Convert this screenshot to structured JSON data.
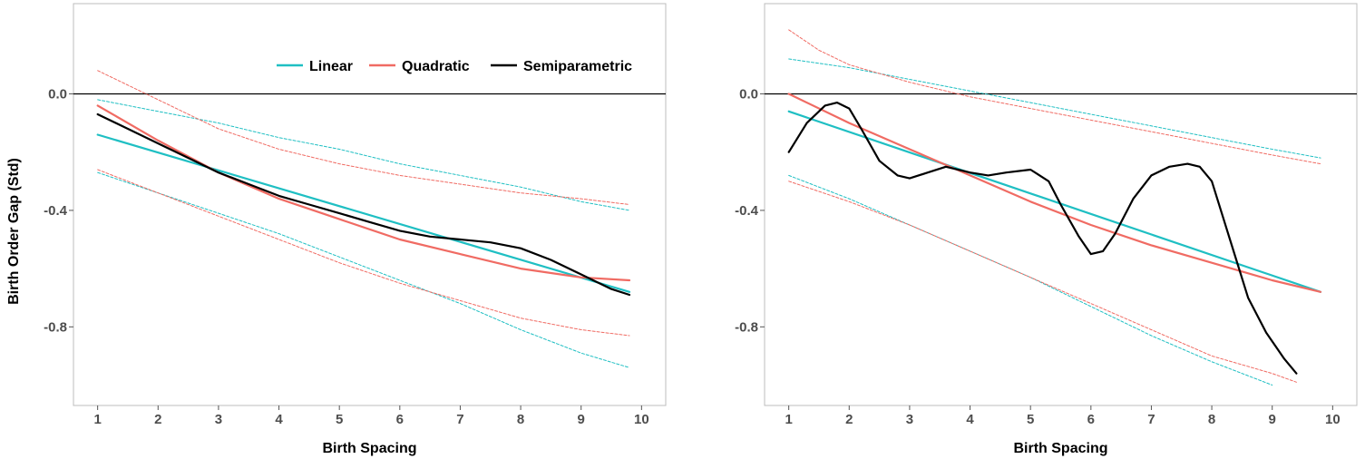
{
  "chart_data": {
    "type": "line",
    "ylabel": "Birth Order Gap (Std)",
    "xlabel": "Birth Spacing",
    "x_ticks": [
      1,
      2,
      3,
      4,
      5,
      6,
      7,
      8,
      9,
      10
    ],
    "y_ticks": [
      0.0,
      -0.4,
      -0.8
    ],
    "y_tick_labels": [
      "0.0",
      "-0.4",
      "-0.8"
    ],
    "colors": {
      "linear": "#1fbfc3",
      "quadratic": "#f06b63",
      "semiparametric": "#000000",
      "zero_line": "#000000"
    },
    "legend": {
      "position": "top-right",
      "items": [
        {
          "key": "linear",
          "label": "Linear"
        },
        {
          "key": "quadratic",
          "label": "Quadratic"
        },
        {
          "key": "semiparametric",
          "label": "Semiparametric"
        }
      ]
    },
    "panels": [
      {
        "xlim": [
          0.6,
          10.4
        ],
        "ylim": [
          -1.07,
          0.31
        ],
        "show_legend": true,
        "series": [
          {
            "key": "linear",
            "name": "Linear",
            "x": [
              1,
              9.8
            ],
            "y": [
              -0.14,
              -0.68
            ]
          },
          {
            "key": "linear_lo",
            "dashed": true,
            "color": "linear",
            "x": [
              1,
              2,
              3,
              4,
              5,
              6,
              7,
              8,
              9,
              9.8
            ],
            "y": [
              -0.27,
              -0.34,
              -0.41,
              -0.48,
              -0.56,
              -0.64,
              -0.72,
              -0.81,
              -0.89,
              -0.94
            ]
          },
          {
            "key": "linear_hi",
            "dashed": true,
            "color": "linear",
            "x": [
              1,
              2,
              3,
              4,
              5,
              6,
              7,
              8,
              9,
              9.8
            ],
            "y": [
              -0.02,
              -0.06,
              -0.1,
              -0.15,
              -0.19,
              -0.24,
              -0.28,
              -0.32,
              -0.37,
              -0.4
            ]
          },
          {
            "key": "quadratic",
            "name": "Quadratic",
            "x": [
              1,
              2,
              3,
              4,
              5,
              6,
              7,
              8,
              9,
              9.8
            ],
            "y": [
              -0.04,
              -0.16,
              -0.27,
              -0.36,
              -0.43,
              -0.5,
              -0.55,
              -0.6,
              -0.63,
              -0.64
            ]
          },
          {
            "key": "quadratic_lo",
            "dashed": true,
            "color": "quadratic",
            "x": [
              1,
              2,
              3,
              4,
              5,
              6,
              7,
              8,
              9,
              9.8
            ],
            "y": [
              -0.26,
              -0.34,
              -0.42,
              -0.5,
              -0.58,
              -0.65,
              -0.71,
              -0.77,
              -0.81,
              -0.83
            ]
          },
          {
            "key": "quadratic_hi",
            "dashed": true,
            "color": "quadratic",
            "x": [
              1,
              2,
              3,
              4,
              5,
              6,
              7,
              8,
              9,
              9.8
            ],
            "y": [
              0.08,
              -0.02,
              -0.12,
              -0.19,
              -0.24,
              -0.28,
              -0.31,
              -0.34,
              -0.36,
              -0.38
            ]
          },
          {
            "key": "semiparametric",
            "name": "Semiparametric",
            "x": [
              1,
              1.5,
              2,
              2.5,
              3,
              3.5,
              4,
              4.5,
              5,
              5.5,
              6,
              6.5,
              7,
              7.5,
              8,
              8.5,
              9,
              9.5,
              9.8
            ],
            "y": [
              -0.07,
              -0.12,
              -0.17,
              -0.22,
              -0.27,
              -0.31,
              -0.35,
              -0.38,
              -0.41,
              -0.44,
              -0.47,
              -0.49,
              -0.5,
              -0.51,
              -0.53,
              -0.57,
              -0.62,
              -0.67,
              -0.69
            ]
          }
        ]
      },
      {
        "xlim": [
          0.6,
          10.4
        ],
        "ylim": [
          -1.07,
          0.31
        ],
        "show_legend": false,
        "series": [
          {
            "key": "linear",
            "name": "Linear",
            "x": [
              1,
              9.8
            ],
            "y": [
              -0.06,
              -0.68
            ]
          },
          {
            "key": "linear_lo",
            "dashed": true,
            "color": "linear",
            "x": [
              1,
              2,
              3,
              4,
              5,
              6,
              7,
              8,
              9
            ],
            "y": [
              -0.28,
              -0.36,
              -0.45,
              -0.54,
              -0.63,
              -0.73,
              -0.83,
              -0.92,
              -1.0
            ]
          },
          {
            "key": "linear_hi",
            "dashed": true,
            "color": "linear",
            "x": [
              1,
              2,
              3,
              4,
              5,
              6,
              7,
              8,
              9,
              9.8
            ],
            "y": [
              0.12,
              0.09,
              0.05,
              0.01,
              -0.03,
              -0.07,
              -0.11,
              -0.15,
              -0.19,
              -0.22
            ]
          },
          {
            "key": "quadratic",
            "name": "Quadratic",
            "x": [
              1,
              2,
              3,
              4,
              5,
              6,
              7,
              8,
              9,
              9.8
            ],
            "y": [
              0.0,
              -0.1,
              -0.19,
              -0.28,
              -0.37,
              -0.45,
              -0.52,
              -0.58,
              -0.64,
              -0.68
            ]
          },
          {
            "key": "quadratic_lo",
            "dashed": true,
            "color": "quadratic",
            "x": [
              1,
              2,
              3,
              4,
              5,
              6,
              7,
              8,
              9,
              9.4
            ],
            "y": [
              -0.3,
              -0.37,
              -0.45,
              -0.54,
              -0.63,
              -0.72,
              -0.81,
              -0.9,
              -0.96,
              -0.99
            ]
          },
          {
            "key": "quadratic_hi",
            "dashed": true,
            "color": "quadratic",
            "x": [
              1,
              1.5,
              2,
              2.5,
              3,
              4,
              5,
              6,
              7,
              8,
              9,
              9.8
            ],
            "y": [
              0.22,
              0.15,
              0.1,
              0.07,
              0.04,
              -0.01,
              -0.05,
              -0.09,
              -0.13,
              -0.17,
              -0.21,
              -0.24
            ]
          },
          {
            "key": "semiparametric",
            "name": "Semiparametric",
            "x": [
              1,
              1.3,
              1.6,
              1.8,
              2.0,
              2.2,
              2.5,
              2.8,
              3.0,
              3.3,
              3.6,
              4.0,
              4.3,
              4.6,
              5.0,
              5.3,
              5.5,
              5.8,
              6.0,
              6.2,
              6.4,
              6.7,
              7.0,
              7.3,
              7.6,
              7.8,
              8.0,
              8.3,
              8.6,
              8.9,
              9.2,
              9.4
            ],
            "y": [
              -0.2,
              -0.1,
              -0.04,
              -0.03,
              -0.05,
              -0.12,
              -0.23,
              -0.28,
              -0.29,
              -0.27,
              -0.25,
              -0.27,
              -0.28,
              -0.27,
              -0.26,
              -0.3,
              -0.38,
              -0.49,
              -0.55,
              -0.54,
              -0.48,
              -0.36,
              -0.28,
              -0.25,
              -0.24,
              -0.25,
              -0.3,
              -0.5,
              -0.7,
              -0.82,
              -0.91,
              -0.96
            ]
          }
        ]
      }
    ]
  }
}
